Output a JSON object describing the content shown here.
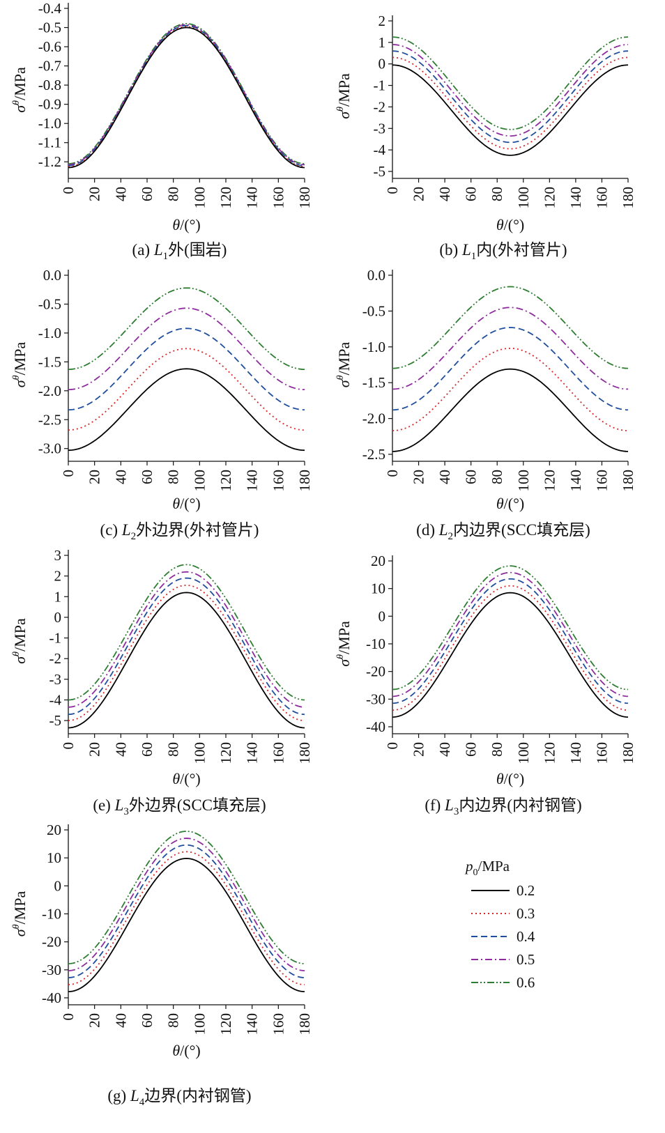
{
  "legend": {
    "title": "p0/MPa",
    "items": [
      {
        "label": "0.2",
        "color": "#000000",
        "dash": ""
      },
      {
        "label": "0.3",
        "color": "#d62728",
        "dash": "2,4"
      },
      {
        "label": "0.4",
        "color": "#1f4e9c",
        "dash": "9,5"
      },
      {
        "label": "0.5",
        "color": "#8e2c9e",
        "dash": "10,4,2,4"
      },
      {
        "label": "0.6",
        "color": "#2e7d32",
        "dash": "10,3,2,3,2,3"
      }
    ]
  },
  "chart_data": [
    {
      "type": "line",
      "caption": "(a) L1外(围岩)",
      "xlabel": "θ/(°)",
      "ylabel": "σθ/MPa",
      "xlim": [
        0,
        180
      ],
      "ylim": [
        -1.25,
        -0.4
      ],
      "xticks": [
        0,
        20,
        40,
        60,
        80,
        100,
        120,
        140,
        160,
        180
      ],
      "yticks": [
        -1.2,
        -1.1,
        -1.0,
        -0.9,
        -0.8,
        -0.7,
        -0.6,
        -0.5,
        -0.4
      ],
      "ytick_labels": [
        "-1.2",
        "-1.1",
        "-1.0",
        "-0.9",
        "-0.8",
        "-0.7",
        "-0.6",
        "-0.5",
        "-0.4"
      ],
      "series": [
        {
          "name": "0.2",
          "y_at_0": -1.23,
          "y_at_90": -0.5
        },
        {
          "name": "0.3",
          "y_at_0": -1.225,
          "y_at_90": -0.495
        },
        {
          "name": "0.4",
          "y_at_0": -1.22,
          "y_at_90": -0.49
        },
        {
          "name": "0.5",
          "y_at_0": -1.215,
          "y_at_90": -0.485
        },
        {
          "name": "0.6",
          "y_at_0": -1.21,
          "y_at_90": -0.48
        }
      ]
    },
    {
      "type": "line",
      "caption": "(b) L1内(外衬管片)",
      "xlabel": "θ/(°)",
      "ylabel": "σθ/MPa",
      "xlim": [
        0,
        180
      ],
      "ylim": [
        -5,
        2
      ],
      "xticks": [
        0,
        20,
        40,
        60,
        80,
        100,
        120,
        140,
        160,
        180
      ],
      "yticks": [
        -5,
        -4,
        -3,
        -2,
        -1,
        0,
        1,
        2
      ],
      "ytick_labels": [
        "-5",
        "-4",
        "-3",
        "-2",
        "-1",
        "0",
        "1",
        "2"
      ],
      "series": [
        {
          "name": "0.2",
          "y_at_0": -0.05,
          "y_at_90": -4.25
        },
        {
          "name": "0.3",
          "y_at_0": 0.3,
          "y_at_90": -3.95
        },
        {
          "name": "0.4",
          "y_at_0": 0.6,
          "y_at_90": -3.65
        },
        {
          "name": "0.5",
          "y_at_0": 0.9,
          "y_at_90": -3.35
        },
        {
          "name": "0.6",
          "y_at_0": 1.25,
          "y_at_90": -3.05
        }
      ]
    },
    {
      "type": "line",
      "caption": "(c) L2外边界(外衬管片)",
      "xlabel": "θ/(°)",
      "ylabel": "σθ/MPa",
      "xlim": [
        0,
        180
      ],
      "ylim": [
        -3.1,
        0.0
      ],
      "xticks": [
        0,
        20,
        40,
        60,
        80,
        100,
        120,
        140,
        160,
        180
      ],
      "yticks": [
        -3.0,
        -2.5,
        -2.0,
        -1.5,
        -1.0,
        -0.5,
        0.0
      ],
      "ytick_labels": [
        "-3.0",
        "-2.5",
        "-2.0",
        "-1.5",
        "-1.0",
        "-0.5",
        "0.0"
      ],
      "series": [
        {
          "name": "0.2",
          "y_at_0": -3.03,
          "y_at_90": -1.62
        },
        {
          "name": "0.3",
          "y_at_0": -2.68,
          "y_at_90": -1.27
        },
        {
          "name": "0.4",
          "y_at_0": -2.33,
          "y_at_90": -0.92
        },
        {
          "name": "0.5",
          "y_at_0": -1.98,
          "y_at_90": -0.57
        },
        {
          "name": "0.6",
          "y_at_0": -1.63,
          "y_at_90": -0.22
        }
      ]
    },
    {
      "type": "line",
      "caption": "(d) L2内边界(SCC填充层)",
      "xlabel": "θ/(°)",
      "ylabel": "σθ/MPa",
      "xlim": [
        0,
        180
      ],
      "ylim": [
        -2.5,
        0.0
      ],
      "xticks": [
        0,
        20,
        40,
        60,
        80,
        100,
        120,
        140,
        160,
        180
      ],
      "yticks": [
        -2.5,
        -2.0,
        -1.5,
        -1.0,
        -0.5,
        0.0
      ],
      "ytick_labels": [
        "-2.5",
        "-2.0",
        "-1.5",
        "-1.0",
        "-0.5",
        "0.0"
      ],
      "series": [
        {
          "name": "0.2",
          "y_at_0": -2.46,
          "y_at_90": -1.31
        },
        {
          "name": "0.3",
          "y_at_0": -2.17,
          "y_at_90": -1.02
        },
        {
          "name": "0.4",
          "y_at_0": -1.88,
          "y_at_90": -0.73
        },
        {
          "name": "0.5",
          "y_at_0": -1.59,
          "y_at_90": -0.45
        },
        {
          "name": "0.6",
          "y_at_0": -1.3,
          "y_at_90": -0.16
        }
      ]
    },
    {
      "type": "line",
      "caption": "(e) L3外边界(SCC填充层)",
      "xlabel": "θ/(°)",
      "ylabel": "σθ/MPa",
      "xlim": [
        0,
        180
      ],
      "ylim": [
        -5.3,
        3
      ],
      "xticks": [
        0,
        20,
        40,
        60,
        80,
        100,
        120,
        140,
        160,
        180
      ],
      "yticks": [
        -5,
        -4,
        -3,
        -2,
        -1,
        0,
        1,
        2,
        3
      ],
      "ytick_labels": [
        "-5",
        "-4",
        "-3",
        "-2",
        "-1",
        "0",
        "1",
        "2",
        "3"
      ],
      "series": [
        {
          "name": "0.2",
          "y_at_0": -5.35,
          "y_at_90": 1.2
        },
        {
          "name": "0.3",
          "y_at_0": -5.0,
          "y_at_90": 1.55
        },
        {
          "name": "0.4",
          "y_at_0": -4.7,
          "y_at_90": 1.9
        },
        {
          "name": "0.5",
          "y_at_0": -4.35,
          "y_at_90": 2.2
        },
        {
          "name": "0.6",
          "y_at_0": -4.0,
          "y_at_90": 2.55
        }
      ]
    },
    {
      "type": "line",
      "caption": "(f) L3内边界(内衬钢管)",
      "xlabel": "θ/(°)",
      "ylabel": "σθ/MPa",
      "xlim": [
        0,
        180
      ],
      "ylim": [
        -40,
        20
      ],
      "xticks": [
        0,
        20,
        40,
        60,
        80,
        100,
        120,
        140,
        160,
        180
      ],
      "yticks": [
        -40,
        -30,
        -20,
        -10,
        0,
        10,
        20
      ],
      "ytick_labels": [
        "-40",
        "-30",
        "-20",
        "-10",
        "0",
        "10",
        "20"
      ],
      "series": [
        {
          "name": "0.2",
          "y_at_0": -36.5,
          "y_at_90": 8.5
        },
        {
          "name": "0.3",
          "y_at_0": -34,
          "y_at_90": 11
        },
        {
          "name": "0.4",
          "y_at_0": -31.5,
          "y_at_90": 13.5
        },
        {
          "name": "0.5",
          "y_at_0": -29,
          "y_at_90": 15.8
        },
        {
          "name": "0.6",
          "y_at_0": -26.5,
          "y_at_90": 18.2
        }
      ]
    },
    {
      "type": "line",
      "caption": "(g) L4边界(内衬钢管)",
      "xlabel": "θ/(°)",
      "ylabel": "σθ/MPa",
      "xlim": [
        0,
        180
      ],
      "ylim": [
        -40,
        20
      ],
      "xticks": [
        0,
        20,
        40,
        60,
        80,
        100,
        120,
        140,
        160,
        180
      ],
      "yticks": [
        -40,
        -30,
        -20,
        -10,
        0,
        10,
        20
      ],
      "ytick_labels": [
        "-40",
        "-30",
        "-20",
        "-10",
        "0",
        "10",
        "20"
      ],
      "series": [
        {
          "name": "0.2",
          "y_at_0": -37.8,
          "y_at_90": 9.8
        },
        {
          "name": "0.3",
          "y_at_0": -35.3,
          "y_at_90": 12.2
        },
        {
          "name": "0.4",
          "y_at_0": -32.8,
          "y_at_90": 14.6
        },
        {
          "name": "0.5",
          "y_at_0": -30.3,
          "y_at_90": 17.0
        },
        {
          "name": "0.6",
          "y_at_0": -27.8,
          "y_at_90": 19.5
        }
      ]
    }
  ]
}
